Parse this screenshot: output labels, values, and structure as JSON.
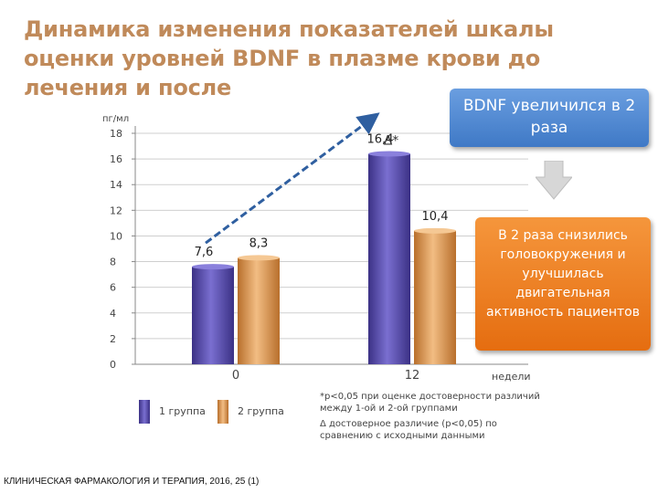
{
  "title": "Динамика изменения показателей шкалы оценки уровней BDNF в плазме крови до лечения и после",
  "callouts": {
    "top": "BDNF увеличился в 2 раза",
    "bottom": "В 2 раза снизились головокружения и улучшилась двигательная активность пациентов"
  },
  "legend": {
    "group1": "1 группа",
    "group2": "2 группа"
  },
  "notes": {
    "star": "*p<0,05 при оценке достоверности различий между 1-ой и 2-ой группами",
    "delta": "Δ достоверное различие (p<0,05) по сравнению с исходными данными"
  },
  "source": "КЛИНИЧЕСКАЯ ФАРМАКОЛОГИЯ И ТЕРАПИЯ, 2016, 25 (1)",
  "colors": {
    "group1": "#5a4fb0",
    "group2": "#e0a060",
    "title": "#c08a5a",
    "callout_top": "#4a84cf",
    "callout_bottom": "#ee7d1f",
    "trend_line": "#2f5fa0"
  },
  "chart_data": {
    "type": "bar",
    "categories": [
      "0",
      "12"
    ],
    "series": [
      {
        "name": "1 группа",
        "values": [
          7.6,
          16.4
        ],
        "labels": [
          "7,6",
          "16,4"
        ]
      },
      {
        "name": "2 группа",
        "values": [
          8.3,
          10.4
        ],
        "labels": [
          "8,3",
          "10,4"
        ]
      }
    ],
    "ylabel": "пг/мл",
    "xlabel": "недели",
    "yticks": [
      "0",
      "2",
      "4",
      "6",
      "8",
      "10",
      "12",
      "14",
      "16",
      "18"
    ],
    "ylim": [
      0,
      18
    ],
    "grid": true,
    "annotations": [
      {
        "text": "Δ*",
        "series": "1 группа",
        "category": "12"
      }
    ],
    "trend_arrow": {
      "series": "1 группа",
      "from": "0",
      "to": "12"
    },
    "legend_position": "bottom-left"
  }
}
